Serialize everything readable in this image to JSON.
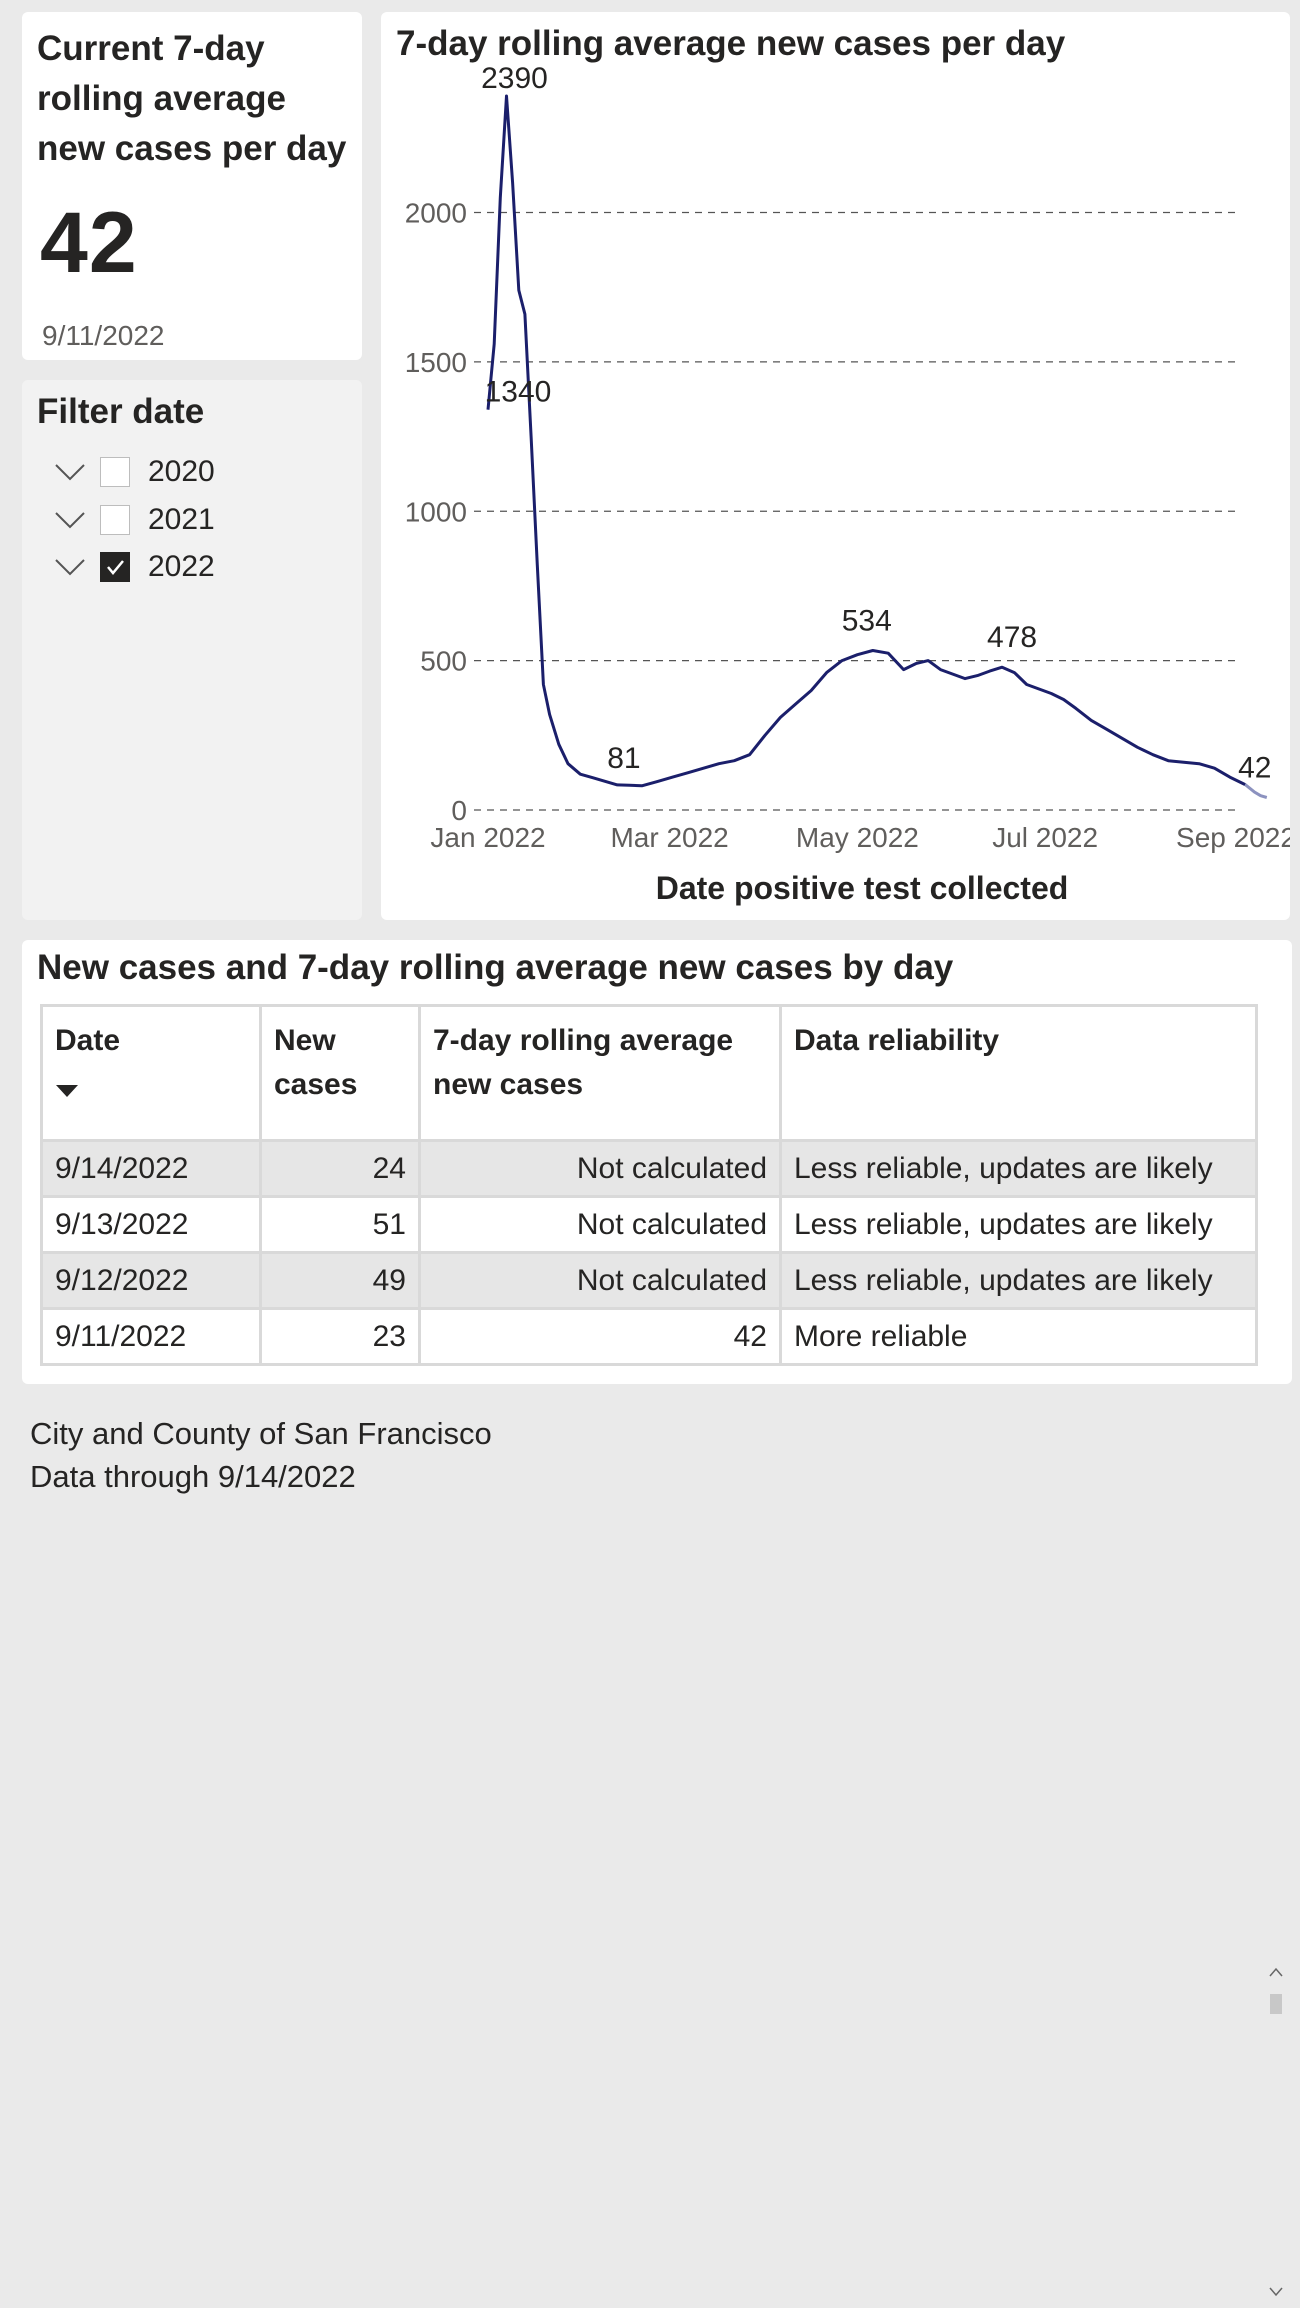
{
  "kpi": {
    "title": "Current 7-day rolling average new cases per day",
    "value": "42",
    "date": "9/11/2022"
  },
  "filter": {
    "title": "Filter date",
    "years": [
      {
        "label": "2020",
        "checked": false
      },
      {
        "label": "2021",
        "checked": false
      },
      {
        "label": "2022",
        "checked": true
      }
    ]
  },
  "chart": {
    "title": "7-day rolling average new cases per day",
    "xlabel": "Date positive test collected",
    "peak_label": "2390"
  },
  "chart_data": {
    "type": "line",
    "title": "7-day rolling average new cases per day",
    "xlabel": "Date positive test collected",
    "ylabel": "",
    "ylim": [
      0,
      2390
    ],
    "yticks": [
      0,
      500,
      1000,
      1500,
      2000
    ],
    "xticks": [
      {
        "date": "2022-01-01",
        "label": "Jan 2022"
      },
      {
        "date": "2022-03-01",
        "label": "Mar 2022"
      },
      {
        "date": "2022-05-01",
        "label": "May 2022"
      },
      {
        "date": "2022-07-01",
        "label": "Jul 2022"
      },
      {
        "date": "2022-09-01",
        "label": "Sep 2022"
      }
    ],
    "grid": true,
    "line_color": "#1b1f6b",
    "unreliable_color": "#8c92bf",
    "series": [
      {
        "x": [
          "2022-01-01",
          "2022-01-03",
          "2022-01-05",
          "2022-01-07",
          "2022-01-09",
          "2022-01-11",
          "2022-01-13",
          "2022-01-15",
          "2022-01-17",
          "2022-01-19",
          "2022-01-21",
          "2022-01-24",
          "2022-01-27",
          "2022-01-31",
          "2022-02-04",
          "2022-02-08",
          "2022-02-12",
          "2022-02-16",
          "2022-02-20",
          "2022-02-25",
          "2022-03-02",
          "2022-03-07",
          "2022-03-12",
          "2022-03-17",
          "2022-03-22",
          "2022-03-27",
          "2022-04-01",
          "2022-04-06",
          "2022-04-11",
          "2022-04-16",
          "2022-04-21",
          "2022-04-26",
          "2022-05-01",
          "2022-05-06",
          "2022-05-11",
          "2022-05-16",
          "2022-05-20",
          "2022-05-24",
          "2022-05-28",
          "2022-06-01",
          "2022-06-05",
          "2022-06-09",
          "2022-06-13",
          "2022-06-17",
          "2022-06-21",
          "2022-06-25",
          "2022-06-29",
          "2022-07-03",
          "2022-07-07",
          "2022-07-11",
          "2022-07-16",
          "2022-07-21",
          "2022-07-26",
          "2022-07-31",
          "2022-08-05",
          "2022-08-10",
          "2022-08-15",
          "2022-08-20",
          "2022-08-25",
          "2022-08-30",
          "2022-09-04",
          "2022-09-07",
          "2022-09-09",
          "2022-09-11"
        ],
        "y": [
          1340,
          1560,
          2050,
          2390,
          2100,
          1740,
          1660,
          1250,
          820,
          420,
          320,
          220,
          155,
          120,
          108,
          96,
          84,
          83,
          81,
          95,
          110,
          125,
          140,
          155,
          165,
          185,
          250,
          310,
          355,
          400,
          460,
          500,
          520,
          534,
          525,
          470,
          490,
          500,
          470,
          455,
          440,
          450,
          465,
          478,
          460,
          420,
          405,
          390,
          370,
          340,
          300,
          270,
          240,
          210,
          185,
          165,
          160,
          155,
          140,
          110,
          85,
          60,
          48,
          42
        ]
      }
    ],
    "annotations": [
      {
        "x": "2022-01-07",
        "y": 2390,
        "label": "2390"
      },
      {
        "x": "2022-01-01",
        "y": 1340,
        "label": "1340"
      },
      {
        "x": "2022-02-20",
        "y": 81,
        "label": "81"
      },
      {
        "x": "2022-05-06",
        "y": 534,
        "label": "534"
      },
      {
        "x": "2022-06-17",
        "y": 478,
        "label": "478"
      },
      {
        "x": "2022-09-11",
        "y": 42,
        "label": "42"
      }
    ]
  },
  "table": {
    "title": "New cases and 7-day rolling average new cases by day",
    "headers": [
      "Date",
      "New cases",
      "7-day rolling average new cases",
      "Data reliability"
    ],
    "rows": [
      [
        "9/14/2022",
        "24",
        "Not calculated",
        "Less reliable, updates are likely"
      ],
      [
        "9/13/2022",
        "51",
        "Not calculated",
        "Less reliable, updates are likely"
      ],
      [
        "9/12/2022",
        "49",
        "Not calculated",
        "Less reliable, updates are likely"
      ],
      [
        "9/11/2022",
        "23",
        "42",
        "More reliable"
      ]
    ]
  },
  "footer": {
    "line1": "City and County of San Francisco",
    "line2": "Data through 9/14/2022"
  }
}
